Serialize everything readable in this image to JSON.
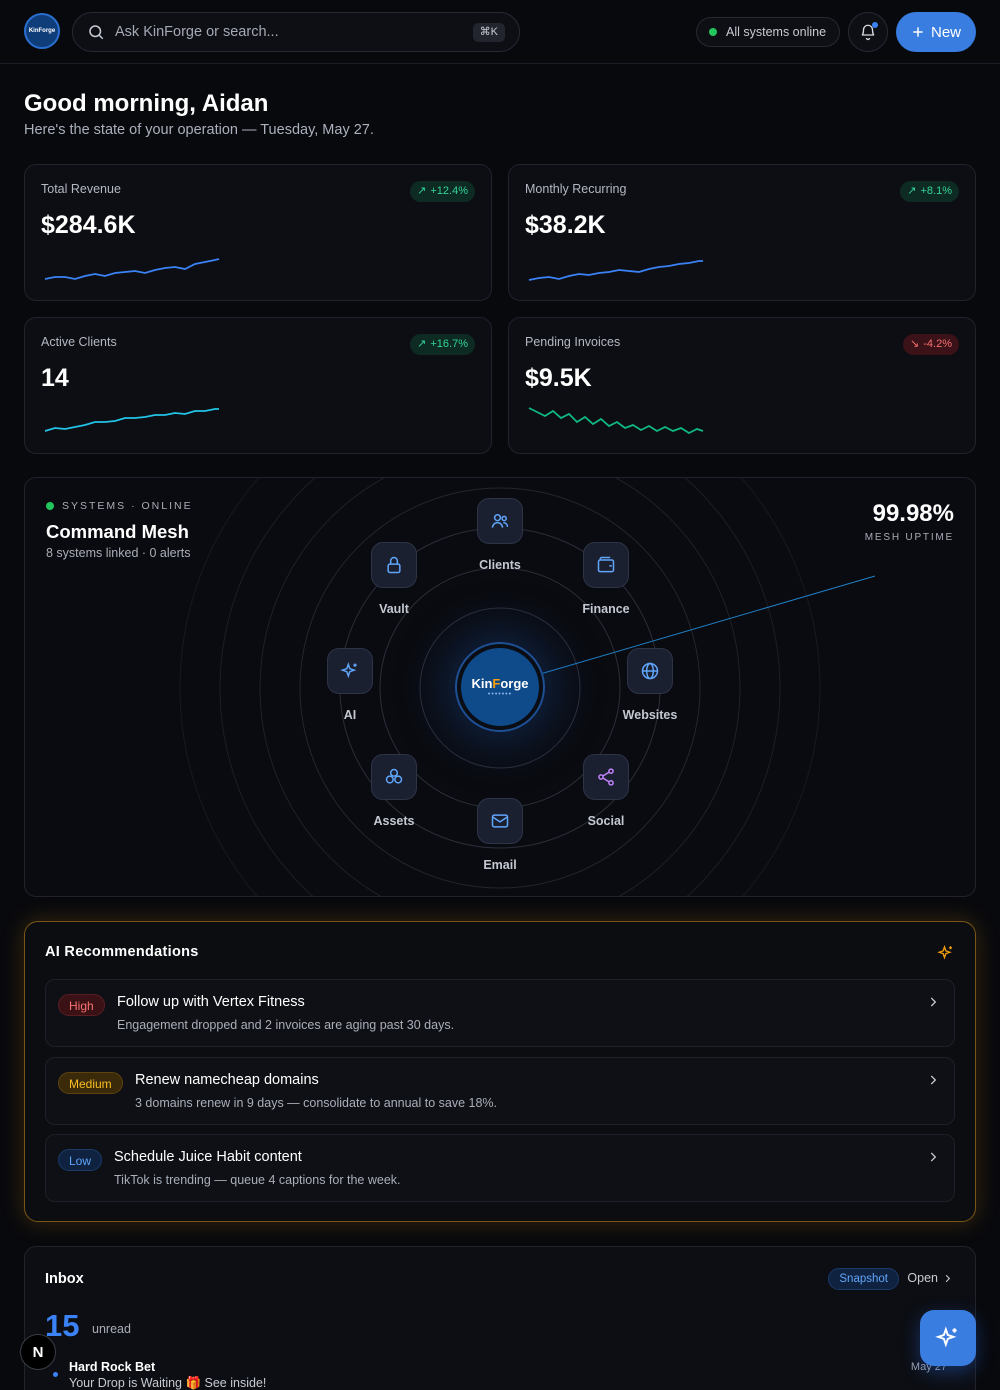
{
  "header": {
    "logo_text": "KinForge",
    "search_placeholder": "Ask KinForge or search...",
    "search_shortcut": "⌘K",
    "status": "All systems online",
    "new_label": "New"
  },
  "greeting": {
    "title": "Good morning, Aidan",
    "subtitle": "Here's the state of your operation — Tuesday, May 27."
  },
  "stats": [
    {
      "label": "Total Revenue",
      "value": "$284.6K",
      "change": "+12.4%",
      "trend": "up",
      "color": "#3b82f6"
    },
    {
      "label": "Monthly Recurring",
      "value": "$38.2K",
      "change": "+8.1%",
      "trend": "up",
      "color": "#3b82f6"
    },
    {
      "label": "Active Clients",
      "value": "14",
      "change": "+16.7%",
      "trend": "up",
      "color": "#22c3e6"
    },
    {
      "label": "Pending Invoices",
      "value": "$9.5K",
      "change": "-4.2%",
      "trend": "down",
      "color": "#10b981"
    }
  ],
  "mesh": {
    "status": "SYSTEMS · ONLINE",
    "title": "Command Mesh",
    "subtitle": "8 systems linked · 0 alerts",
    "uptime": "99.98%",
    "uptime_label": "MESH UPTIME",
    "hub_name_a": "Kin",
    "hub_name_b": "F",
    "hub_name_c": "orge",
    "hub_dots": "•••••••",
    "nodes": [
      {
        "label": "Clients",
        "icon": "users-icon"
      },
      {
        "label": "Finance",
        "icon": "wallet-icon"
      },
      {
        "label": "Websites",
        "icon": "globe-icon"
      },
      {
        "label": "Social",
        "icon": "share-icon"
      },
      {
        "label": "Email",
        "icon": "mail-icon"
      },
      {
        "label": "Assets",
        "icon": "boxes-icon"
      },
      {
        "label": "AI",
        "icon": "sparkles-icon"
      },
      {
        "label": "Vault",
        "icon": "lock-icon"
      }
    ]
  },
  "recs": {
    "title": "AI Recommendations",
    "items": [
      {
        "priority": "High",
        "title": "Follow up with Vertex Fitness",
        "desc": "Engagement dropped and 2 invoices are aging past 30 days."
      },
      {
        "priority": "Medium",
        "title": "Renew namecheap domains",
        "desc": "3 domains renew in 9 days — consolidate to annual to save 18%."
      },
      {
        "priority": "Low",
        "title": "Schedule Juice Habit content",
        "desc": "TikTok is trending — queue 4 captions for the week."
      }
    ]
  },
  "inbox": {
    "title": "Inbox",
    "tag": "Snapshot",
    "open_label": "Open",
    "count": "15",
    "count_label": "unread",
    "mail": {
      "from": "Hard Rock Bet",
      "subject": "Your Drop is Waiting 🎁 See inside!",
      "date": "May 27"
    }
  },
  "floating": {
    "n_badge": "N"
  }
}
